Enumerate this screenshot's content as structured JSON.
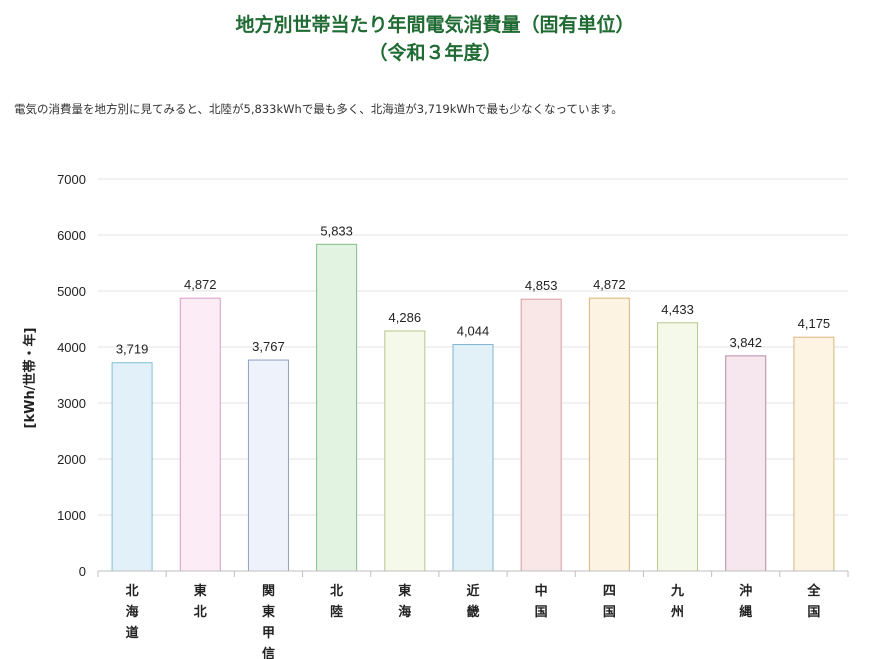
{
  "header": {
    "title_line1": "地方別世帯当たり年間電気消費量（固有単位）",
    "title_line2": "（令和３年度）"
  },
  "description": "電気の消費量を地方別に見てみると、北陸が5,833kWhで最も多く、北海道が3,719kWhで最も少なくなっています。",
  "chart_data": {
    "type": "bar",
    "categories": [
      "北海道",
      "東北",
      "関東甲信",
      "北陸",
      "東海",
      "近畿",
      "中国",
      "四国",
      "九州",
      "沖縄",
      "全国"
    ],
    "values": [
      3719,
      4872,
      3767,
      5833,
      4286,
      4044,
      4853,
      4872,
      4433,
      3842,
      4175
    ],
    "data_labels": [
      "3,719",
      "4,872",
      "3,767",
      "5,833",
      "4,286",
      "4,044",
      "4,853",
      "4,872",
      "4,433",
      "3,842",
      "4,175"
    ],
    "ylabel": "[kWh/世帯・年]",
    "ylim": [
      0,
      7000
    ],
    "yticks": [
      0,
      1000,
      2000,
      3000,
      4000,
      5000,
      6000,
      7000
    ],
    "grid": true,
    "bar_fills": [
      "#e2f1f9",
      "#fcecf6",
      "#eef3fb",
      "#e3f3e2",
      "#f5f9ea",
      "#e2f0f8",
      "#f9e7e8",
      "#fdf3e3",
      "#f5f9ea",
      "#f6e7ee",
      "#fdf4e3"
    ],
    "bar_strokes": [
      "#7fbfd6",
      "#d89ac5",
      "#8f9fc2",
      "#84bd84",
      "#b6c78a",
      "#7fb6cf",
      "#d89a9f",
      "#d8b57c",
      "#b6c78a",
      "#b98aa3",
      "#d8b57c"
    ]
  }
}
